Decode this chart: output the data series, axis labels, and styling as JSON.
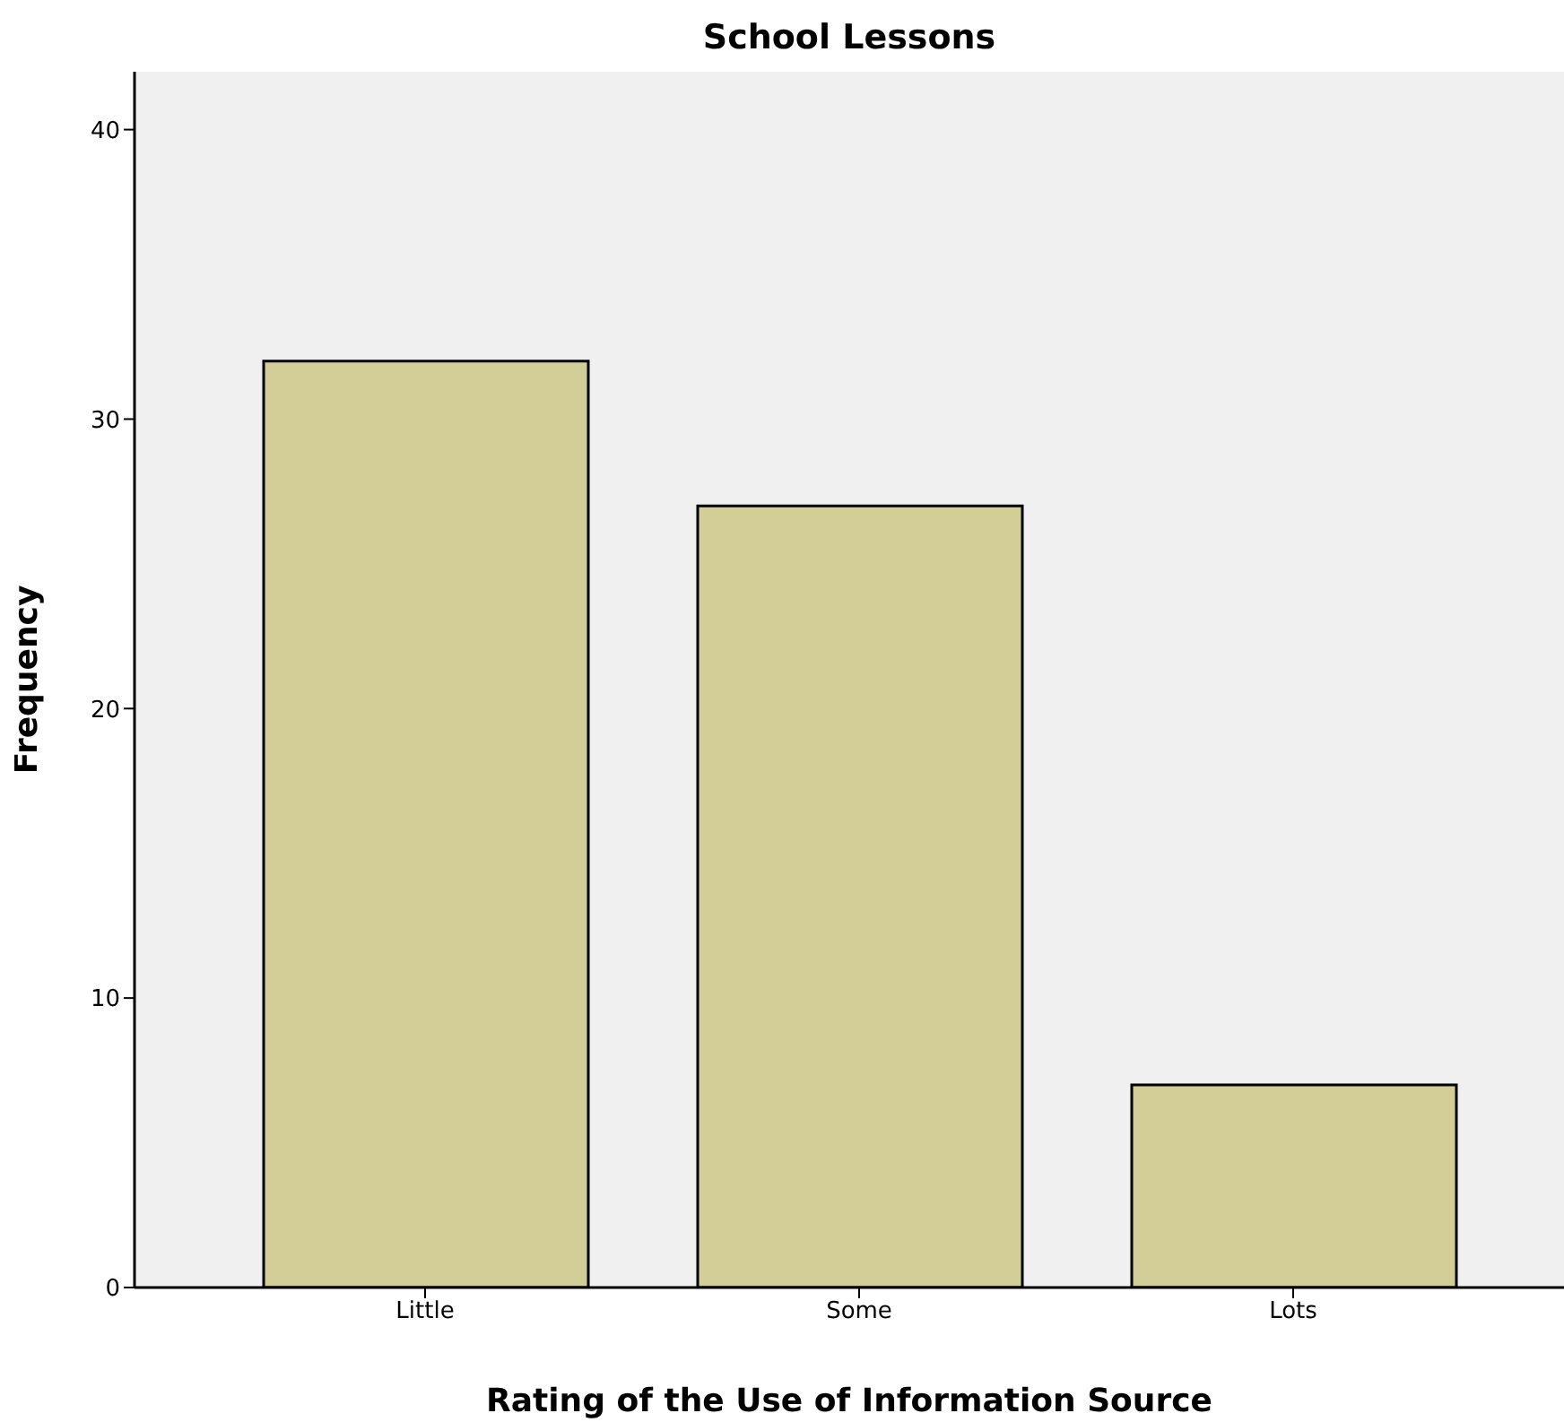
{
  "chart_data": {
    "type": "bar",
    "title": "School Lessons",
    "xlabel": "Rating of the Use of Information Source",
    "ylabel": "Frequency",
    "categories": [
      "Little",
      "Some",
      "Lots"
    ],
    "values": [
      32,
      27,
      7
    ],
    "color": "#d3ce97",
    "ylim": [
      0,
      42
    ],
    "yticks": [
      0,
      10,
      20,
      30,
      40
    ]
  }
}
